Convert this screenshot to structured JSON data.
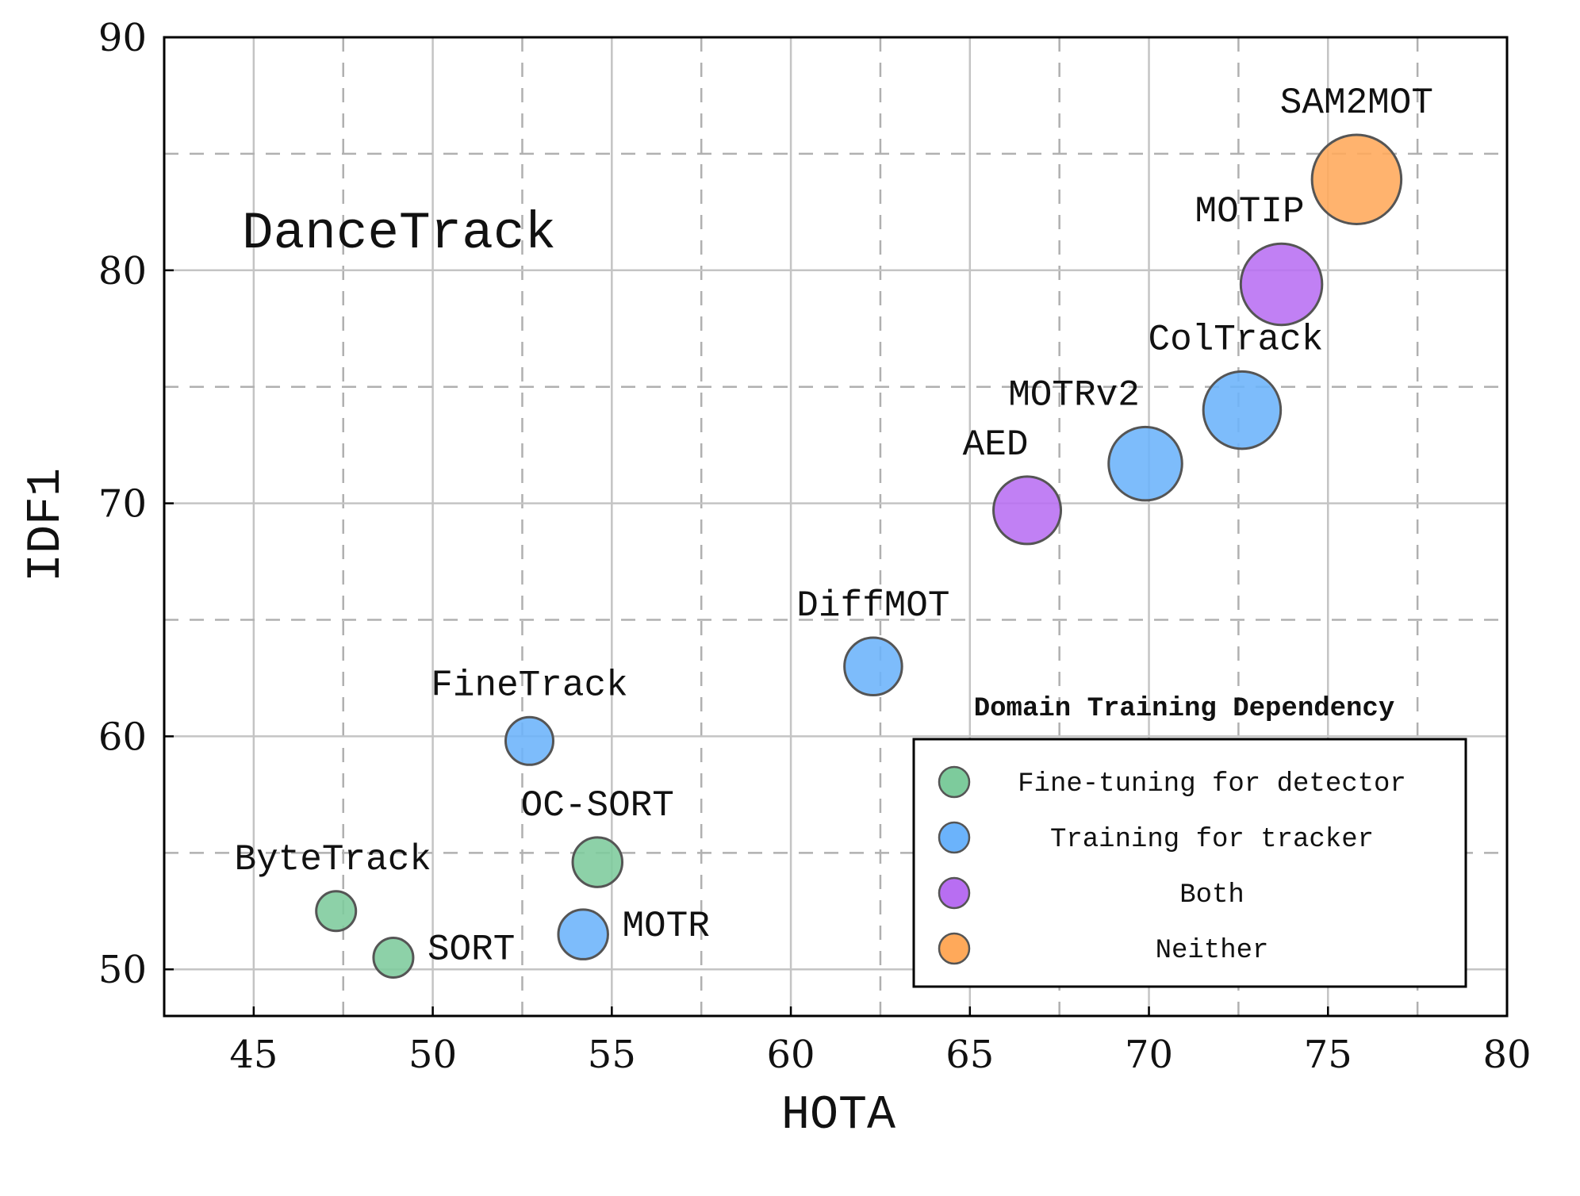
{
  "chart_data": {
    "type": "scatter",
    "annotation": "DanceTrack",
    "xlabel": "HOTA",
    "ylabel": "IDF1",
    "xlim": [
      42.5,
      80
    ],
    "ylim": [
      48,
      90
    ],
    "x_ticks": [
      45,
      50,
      55,
      60,
      65,
      70,
      75,
      80
    ],
    "y_ticks": [
      50,
      60,
      70,
      80,
      90
    ],
    "grid": true,
    "legend": {
      "title": "Domain Training Dependency",
      "placement": "lower-right",
      "entries": [
        {
          "key": "finetune",
          "label": "Fine-tuning for detector",
          "color": "#7dcb9c"
        },
        {
          "key": "tracker",
          "label": "Training for tracker",
          "color": "#6bb3fb"
        },
        {
          "key": "both",
          "label": "Both",
          "color": "#b86ef2"
        },
        {
          "key": "neither",
          "label": "Neither",
          "color": "#ffa95a"
        }
      ]
    },
    "points": [
      {
        "name": "ByteTrack",
        "x": 47.3,
        "y": 52.5,
        "category": "finetune",
        "size": 1.0
      },
      {
        "name": "SORT",
        "x": 48.9,
        "y": 50.5,
        "category": "finetune",
        "size": 1.0
      },
      {
        "name": "OC-SORT",
        "x": 54.6,
        "y": 54.6,
        "category": "finetune",
        "size": 1.25
      },
      {
        "name": "MOTR",
        "x": 54.2,
        "y": 51.5,
        "category": "tracker",
        "size": 1.25
      },
      {
        "name": "FineTrack",
        "x": 52.7,
        "y": 59.8,
        "category": "tracker",
        "size": 1.2
      },
      {
        "name": "DiffMOT",
        "x": 62.3,
        "y": 63.0,
        "category": "tracker",
        "size": 1.45
      },
      {
        "name": "AED",
        "x": 66.6,
        "y": 69.7,
        "category": "both",
        "size": 1.7
      },
      {
        "name": "MOTRv2",
        "x": 69.9,
        "y": 71.7,
        "category": "tracker",
        "size": 1.85
      },
      {
        "name": "ColTrack",
        "x": 72.6,
        "y": 74.0,
        "category": "tracker",
        "size": 1.95
      },
      {
        "name": "MOTIP",
        "x": 73.7,
        "y": 79.4,
        "category": "both",
        "size": 2.05
      },
      {
        "name": "SAM2MOT",
        "x": 75.8,
        "y": 83.9,
        "category": "neither",
        "size": 2.25
      }
    ]
  }
}
